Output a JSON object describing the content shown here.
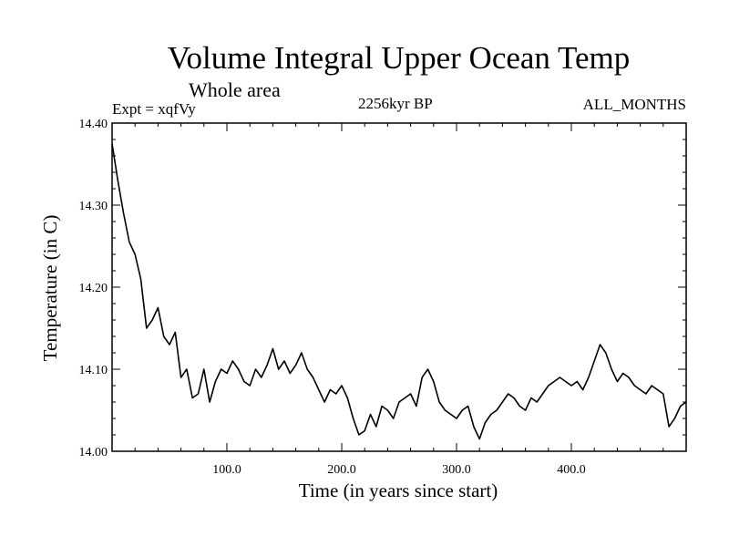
{
  "chart_data": {
    "type": "line",
    "title": "Volume Integral Upper Ocean Temp",
    "subtitle": "Whole area",
    "experiment": "Expt = xqfVy",
    "period": "2256kyr BP",
    "months": "ALL_MONTHS",
    "xlabel": "Time (in years since start)",
    "ylabel": "Temperature (in C)",
    "xlim": [
      0,
      500
    ],
    "ylim": [
      14.0,
      14.4
    ],
    "x_ticks": [
      100,
      200,
      300,
      400
    ],
    "x_tick_labels": [
      "100.0",
      "200.0",
      "300.0",
      "400.0"
    ],
    "y_ticks": [
      14.0,
      14.1,
      14.2,
      14.3,
      14.4
    ],
    "y_tick_labels": [
      "14.00",
      "14.10",
      "14.20",
      "14.30",
      "14.40"
    ],
    "grid": false,
    "series": [
      {
        "name": "Volume Integral Upper Ocean Temp",
        "x": [
          0,
          5,
          10,
          15,
          20,
          25,
          30,
          35,
          40,
          45,
          50,
          55,
          60,
          65,
          70,
          75,
          80,
          85,
          90,
          95,
          100,
          105,
          110,
          115,
          120,
          125,
          130,
          135,
          140,
          145,
          150,
          155,
          160,
          165,
          170,
          175,
          180,
          185,
          190,
          195,
          200,
          205,
          210,
          215,
          220,
          225,
          230,
          235,
          240,
          245,
          250,
          255,
          260,
          265,
          270,
          275,
          280,
          285,
          290,
          295,
          300,
          305,
          310,
          315,
          320,
          325,
          330,
          335,
          340,
          345,
          350,
          355,
          360,
          365,
          370,
          375,
          380,
          385,
          390,
          395,
          400,
          405,
          410,
          415,
          420,
          425,
          430,
          435,
          440,
          445,
          450,
          455,
          460,
          465,
          470,
          475,
          480,
          485,
          490,
          495,
          500
        ],
        "values": [
          14.375,
          14.33,
          14.29,
          14.255,
          14.24,
          14.21,
          14.15,
          14.16,
          14.175,
          14.14,
          14.13,
          14.145,
          14.09,
          14.1,
          14.065,
          14.07,
          14.1,
          14.06,
          14.085,
          14.1,
          14.095,
          14.11,
          14.1,
          14.085,
          14.08,
          14.1,
          14.09,
          14.105,
          14.125,
          14.1,
          14.11,
          14.095,
          14.105,
          14.12,
          14.1,
          14.09,
          14.075,
          14.06,
          14.075,
          14.07,
          14.08,
          14.065,
          14.04,
          14.02,
          14.025,
          14.045,
          14.03,
          14.055,
          14.05,
          14.04,
          14.06,
          14.065,
          14.07,
          14.055,
          14.09,
          14.1,
          14.085,
          14.06,
          14.05,
          14.045,
          14.04,
          14.05,
          14.055,
          14.03,
          14.015,
          14.035,
          14.045,
          14.05,
          14.06,
          14.07,
          14.065,
          14.055,
          14.05,
          14.065,
          14.06,
          14.07,
          14.08,
          14.085,
          14.09,
          14.085,
          14.08,
          14.085,
          14.075,
          14.09,
          14.11,
          14.13,
          14.12,
          14.1,
          14.085,
          14.095,
          14.09,
          14.08,
          14.075,
          14.07,
          14.08,
          14.075,
          14.07,
          14.03,
          14.04,
          14.055,
          14.06
        ]
      }
    ]
  }
}
